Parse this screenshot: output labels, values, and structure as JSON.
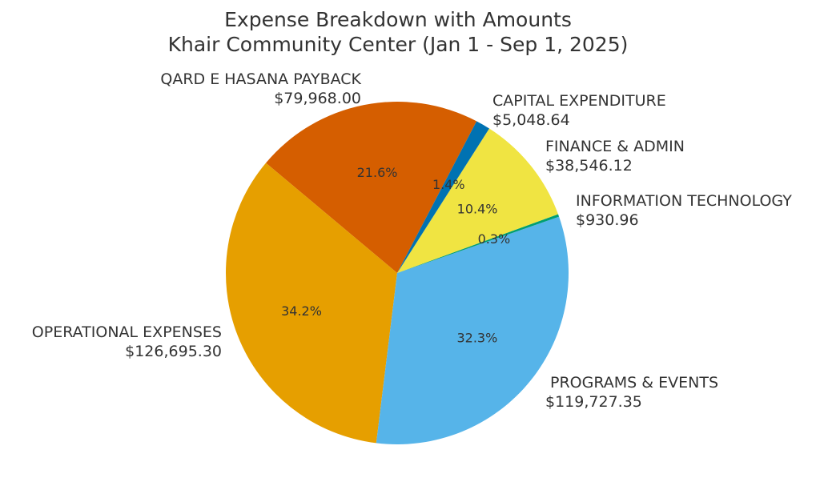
{
  "chart_data": {
    "type": "pie",
    "title": "Expense Breakdown with Amounts",
    "subtitle": "Khair Community Center (Jan 1 - Sep 1, 2025)",
    "start_angle_deg": 62.4,
    "direction": "counterclockwise",
    "slices": [
      {
        "label": "QARD E HASANA PAYBACK",
        "amount": "$79,968.00",
        "value": 79968.0,
        "percent": "21.6%",
        "color": "#D55E00"
      },
      {
        "label": "OPERATIONAL EXPENSES",
        "amount": "$126,695.30",
        "value": 126695.3,
        "percent": "34.2%",
        "color": "#E69F00"
      },
      {
        "label": "PROGRAMS & EVENTS",
        "amount": "$119,727.35",
        "value": 119727.35,
        "percent": "32.3%",
        "color": "#56B4E9"
      },
      {
        "label": "INFORMATION TECHNOLOGY",
        "amount": "$930.96",
        "value": 930.96,
        "percent": "0.3%",
        "color": "#009E73"
      },
      {
        "label": "FINANCE & ADMIN",
        "amount": "$38,546.12",
        "value": 38546.12,
        "percent": "10.4%",
        "color": "#F0E442"
      },
      {
        "label": "CAPITAL EXPENDITURE",
        "amount": "$5,048.64",
        "value": 5048.64,
        "percent": "1.4%",
        "color": "#0072B2"
      }
    ]
  }
}
